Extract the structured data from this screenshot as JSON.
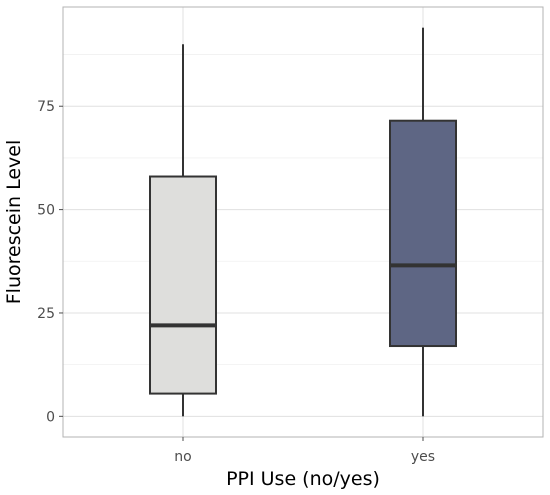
{
  "chart_data": {
    "type": "box",
    "xlabel": "PPI Use (no/yes)",
    "ylabel": "Fluorescein Level",
    "categories": [
      "no",
      "yes"
    ],
    "ylim": [
      -5,
      99
    ],
    "y_ticks": [
      0,
      25,
      50,
      75
    ],
    "grid": true,
    "boxes": [
      {
        "category": "no",
        "min": 0,
        "q1": 5.5,
        "median": 22,
        "q3": 58,
        "max": 90,
        "fill": "#dededc"
      },
      {
        "category": "yes",
        "min": 0,
        "q1": 17,
        "median": 36.5,
        "q3": 71.5,
        "max": 94,
        "fill": "#5e6684"
      }
    ]
  }
}
